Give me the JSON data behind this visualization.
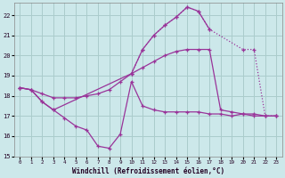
{
  "xlabel": "Windchill (Refroidissement éolien,°C)",
  "background_color": "#cce8ea",
  "grid_color": "#aacccc",
  "line_color": "#993399",
  "xlim": [
    -0.5,
    23.5
  ],
  "ylim": [
    15,
    22.6
  ],
  "yticks": [
    15,
    16,
    17,
    18,
    19,
    20,
    21,
    22
  ],
  "xticks": [
    0,
    1,
    2,
    3,
    4,
    5,
    6,
    7,
    8,
    9,
    10,
    11,
    12,
    13,
    14,
    15,
    16,
    17,
    18,
    19,
    20,
    21,
    22,
    23
  ],
  "line1_x": [
    0,
    1,
    2,
    3,
    4,
    5,
    6,
    7,
    8,
    9,
    10,
    11,
    12,
    13,
    14,
    15,
    16,
    17,
    18,
    19,
    20,
    21,
    22,
    23
  ],
  "line1_y": [
    18.4,
    18.3,
    17.7,
    17.3,
    16.9,
    16.5,
    16.3,
    15.5,
    15.4,
    16.1,
    18.7,
    17.5,
    17.3,
    17.2,
    17.2,
    17.2,
    17.2,
    17.1,
    17.1,
    17.0,
    17.1,
    17.1,
    17.0,
    17.0
  ],
  "line2_x": [
    0,
    1,
    2,
    3,
    4,
    5,
    6,
    7,
    8,
    9,
    10,
    11,
    12,
    13,
    14,
    15,
    16,
    17,
    18,
    19,
    20,
    21,
    22,
    23
  ],
  "line2_y": [
    18.4,
    18.3,
    18.1,
    17.9,
    17.9,
    17.9,
    18.0,
    18.1,
    18.3,
    18.7,
    19.1,
    19.4,
    19.7,
    20.0,
    20.2,
    20.3,
    20.3,
    20.3,
    17.3,
    17.2,
    17.1,
    17.0,
    17.0,
    17.0
  ],
  "line3_x": [
    10,
    11,
    12,
    13,
    14,
    15,
    16,
    17,
    20,
    21,
    22,
    23
  ],
  "line3_y": [
    19.1,
    20.3,
    21.0,
    21.5,
    21.9,
    22.4,
    22.2,
    21.3,
    20.3,
    20.3,
    17.0,
    17.0
  ],
  "line4_x": [
    0,
    1,
    2,
    3,
    10,
    11,
    12,
    13,
    14,
    15,
    16,
    17
  ],
  "line4_y": [
    18.4,
    18.3,
    17.7,
    17.3,
    19.1,
    20.3,
    21.0,
    21.5,
    21.9,
    22.4,
    22.2,
    21.3
  ]
}
